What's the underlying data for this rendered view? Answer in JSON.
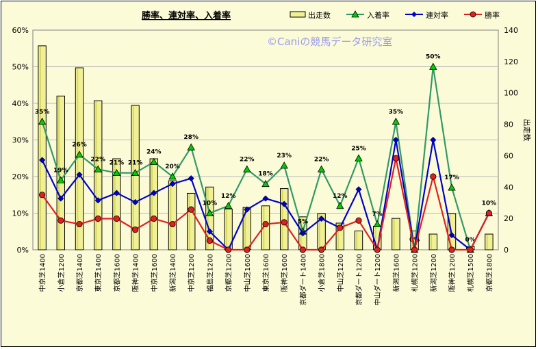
{
  "chart_data": {
    "type": "bar",
    "title": "勝率、連対率、入着率",
    "watermark": "©Caniの競馬データ研究室",
    "categories": [
      "中京芝1400",
      "小倉芝1200",
      "京都芝1400",
      "東京芝1400",
      "京都芝1600",
      "阪神芝1400",
      "中京芝1600",
      "新潟芝1400",
      "中京芝1200",
      "福島芝1200",
      "京都芝1200",
      "中山芝1600",
      "東京芝1600",
      "阪神芝1600",
      "京都ダート1400",
      "小倉芝1800",
      "中山芝1200",
      "京都ダート1200",
      "中山ダート1200",
      "新潟芝1600",
      "札幌芝1200",
      "新潟芝1200",
      "阪神芝1200",
      "札幌芝1500",
      "京都芝1800"
    ],
    "left_axis": {
      "ticks": [
        "0%",
        "10%",
        "20%",
        "30%",
        "40%",
        "50%",
        "60%"
      ],
      "ylim": [
        0,
        60
      ]
    },
    "right_axis": {
      "label": "出走数",
      "ticks": [
        "0",
        "20",
        "40",
        "60",
        "80",
        "100",
        "120",
        "140"
      ],
      "ylim": [
        0,
        140
      ]
    },
    "series": [
      {
        "name": "出走数",
        "type": "bar",
        "axis": "right",
        "color": "#f0f096",
        "values": [
          130,
          98,
          116,
          95,
          58,
          92,
          58,
          44,
          36,
          40,
          26,
          27,
          28,
          39,
          21,
          23,
          17,
          12,
          15,
          20,
          12,
          10,
          23,
          2,
          10
        ]
      },
      {
        "name": "入着率",
        "type": "line",
        "axis": "left",
        "color": "#339966",
        "marker": "triangle",
        "values": [
          35,
          19,
          26,
          22,
          21,
          21,
          24,
          20,
          28,
          10,
          12,
          22,
          18,
          23,
          5,
          22,
          12,
          25,
          7,
          35,
          0,
          50,
          17,
          0,
          10
        ],
        "labels": [
          "35%",
          "19%",
          "26%",
          "22%",
          "21%",
          "21%",
          "24%",
          "20%",
          "28%",
          "10%",
          "12%",
          "22%",
          "18%",
          "23%",
          "5%",
          "22%",
          "12%",
          "25%",
          "7%",
          "35%",
          "0%",
          "50%",
          "17%",
          "0%",
          "10%"
        ]
      },
      {
        "name": "連対率",
        "type": "line",
        "axis": "left",
        "color": "#0000cc",
        "marker": "diamond",
        "values": [
          24.5,
          14,
          20.5,
          13.5,
          15.5,
          13,
          15.5,
          18,
          19.5,
          5,
          0,
          11,
          14,
          12.5,
          4.5,
          8.5,
          6,
          16.5,
          0,
          30,
          0,
          30,
          4,
          0,
          10
        ]
      },
      {
        "name": "勝率",
        "type": "line",
        "axis": "left",
        "color": "#e02020",
        "marker": "circle",
        "values": [
          15,
          8,
          7,
          8.5,
          8.5,
          5.5,
          8.5,
          7,
          11,
          2.5,
          0,
          0,
          7,
          7.5,
          0,
          0,
          6,
          8,
          0,
          25,
          0,
          20,
          0,
          0,
          10
        ]
      }
    ],
    "legend_position": "top-right",
    "grid": true
  }
}
